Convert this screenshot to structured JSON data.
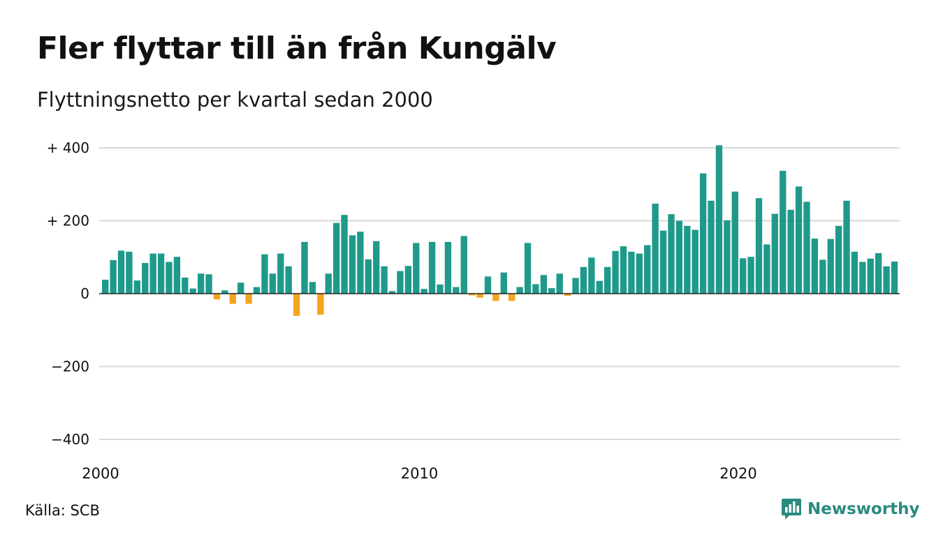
{
  "title": "Fler flyttar till än från Kungälv",
  "subtitle": "Flyttningsnetto per kvartal sedan 2000",
  "source": "Källa: SCB",
  "brand": {
    "name": "Newsworthy",
    "logo_icon": "chart-bars-icon"
  },
  "colors": {
    "positive": "#1f9a8a",
    "negative": "#f4a41d",
    "grid": "#d9d9d9",
    "baseline": "#222222",
    "brand": "#2a8a80"
  },
  "chart_data": {
    "type": "bar",
    "start_year": 2000,
    "start_quarter": 1,
    "ylim": [
      -400,
      400
    ],
    "yticks": [
      400,
      200,
      0,
      -200,
      -400
    ],
    "ytick_labels": [
      "+ 400",
      "+ 200",
      "0",
      "−200",
      "−400"
    ],
    "xtick_labels": [
      "2000",
      "2010",
      "2020"
    ],
    "grid": true,
    "values": [
      38,
      92,
      118,
      115,
      36,
      84,
      110,
      110,
      87,
      101,
      44,
      14,
      55,
      53,
      -16,
      9,
      -28,
      30,
      -28,
      18,
      108,
      55,
      110,
      75,
      -61,
      142,
      32,
      -58,
      55,
      194,
      216,
      160,
      170,
      94,
      144,
      75,
      7,
      62,
      76,
      139,
      13,
      142,
      25,
      142,
      18,
      158,
      -5,
      -11,
      47,
      -20,
      58,
      -20,
      18,
      139,
      26,
      51,
      15,
      55,
      -6,
      43,
      73,
      99,
      35,
      73,
      117,
      130,
      115,
      110,
      133,
      247,
      173,
      218,
      200,
      186,
      175,
      330,
      255,
      407,
      201,
      280,
      97,
      101,
      262,
      135,
      219,
      337,
      230,
      294,
      252,
      151,
      93,
      150,
      186,
      255,
      115,
      87,
      96,
      111,
      75,
      88
    ]
  }
}
